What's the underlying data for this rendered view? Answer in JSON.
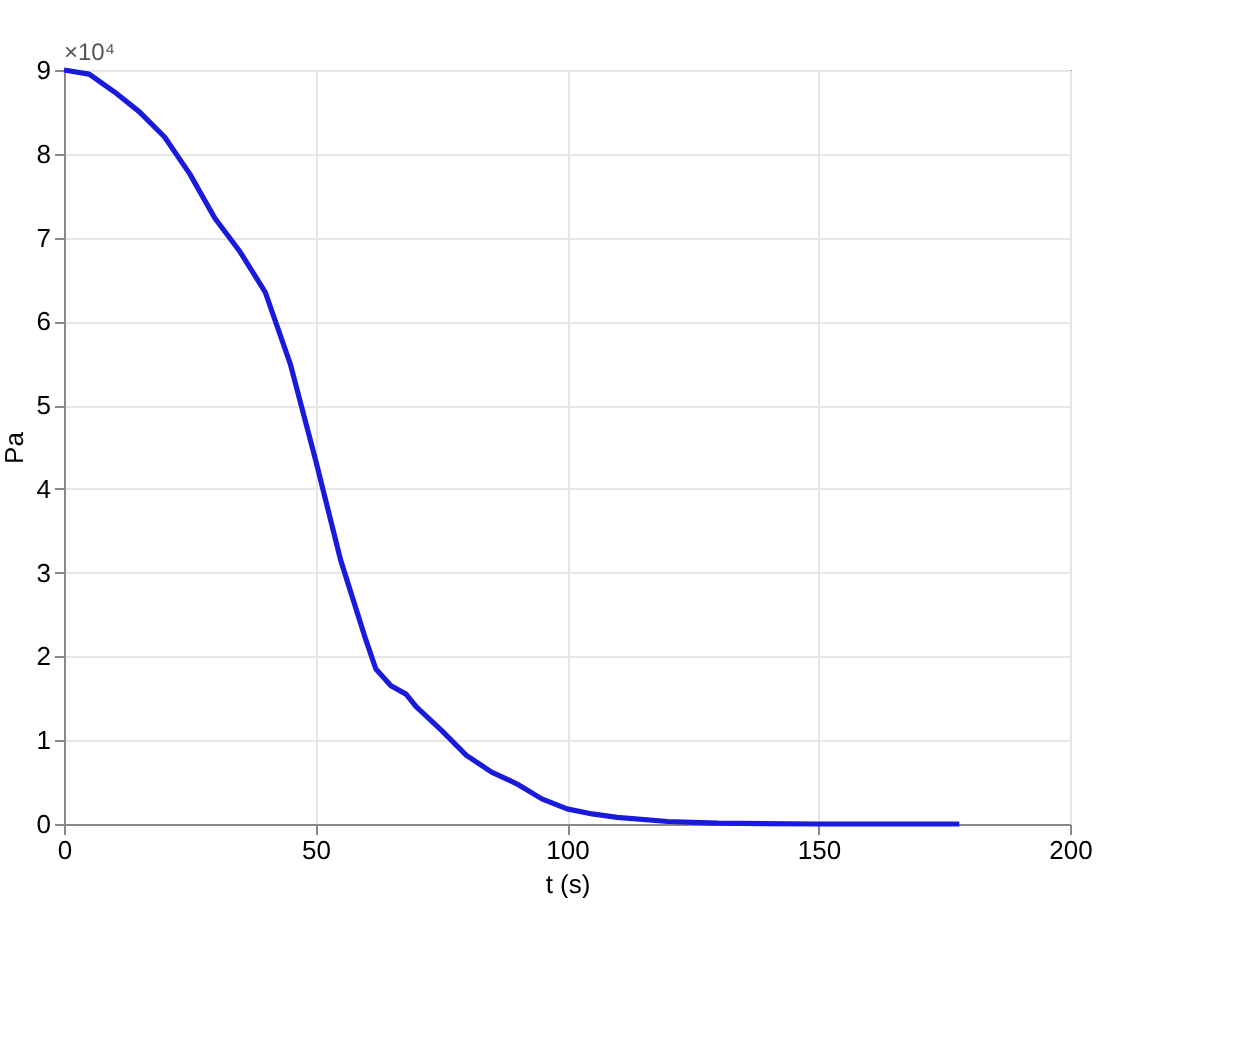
{
  "chart_data": {
    "type": "line",
    "xlabel": "t (s)",
    "ylabel": "Pa",
    "annotations": [
      "×10⁴"
    ],
    "xlim": [
      0,
      200
    ],
    "xticks": [
      0,
      50,
      100,
      150,
      200
    ],
    "ylim": [
      0,
      9
    ],
    "yticks": [
      0,
      1,
      2,
      3,
      4,
      5,
      6,
      7,
      8,
      9
    ],
    "grid": true,
    "marker": "none",
    "line_style": "solid",
    "series": [
      {
        "color": "#1a1adc",
        "x": [
          0,
          5,
          10,
          15,
          20,
          25,
          30,
          35,
          40,
          45,
          50,
          55,
          60,
          62,
          65,
          68,
          70,
          75,
          80,
          85,
          90,
          95,
          100,
          105,
          110,
          120,
          130,
          150,
          178
        ],
        "values": [
          9,
          8.95,
          8.74,
          8.5,
          8.2,
          7.76,
          7.23,
          6.83,
          6.35,
          5.49,
          4.35,
          3.15,
          2.2,
          1.85,
          1.65,
          1.55,
          1.4,
          1.12,
          0.82,
          0.62,
          0.48,
          0.3,
          0.18,
          0.12,
          0.08,
          0.03,
          0.01,
          0,
          0
        ]
      }
    ]
  }
}
